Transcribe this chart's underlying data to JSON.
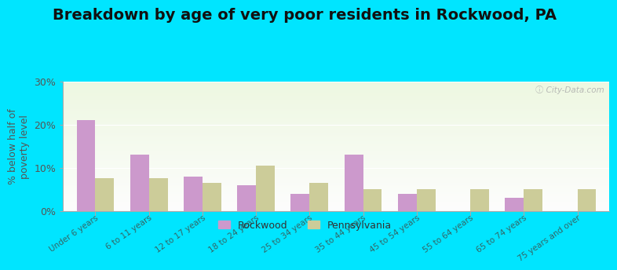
{
  "title": "Breakdown by age of very poor residents in Rockwood, PA",
  "ylabel": "% below half of\npoverty level",
  "categories": [
    "Under 6 years",
    "6 to 11 years",
    "12 to 17 years",
    "18 to 24 years",
    "25 to 34 years",
    "35 to 44 years",
    "45 to 54 years",
    "55 to 64 years",
    "65 to 74 years",
    "75 years and over"
  ],
  "rockwood": [
    21,
    13,
    8,
    6,
    4,
    13,
    4,
    0,
    3,
    0
  ],
  "pennsylvania": [
    7.5,
    7.5,
    6.5,
    10.5,
    6.5,
    5,
    5,
    5,
    5,
    5
  ],
  "rockwood_color": "#cc99cc",
  "pennsylvania_color": "#cccc99",
  "outer_bg": "#00e5ff",
  "ylim": [
    0,
    30
  ],
  "yticks": [
    0,
    10,
    20,
    30
  ],
  "ytick_labels": [
    "0%",
    "10%",
    "20%",
    "30%"
  ],
  "bar_width": 0.35,
  "title_fontsize": 14,
  "legend_labels": [
    "Rockwood",
    "Pennsylvania"
  ],
  "watermark": "ⓘ City-Data.com"
}
